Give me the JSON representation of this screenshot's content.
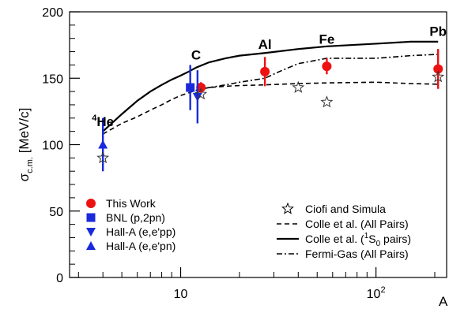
{
  "chart_data": {
    "type": "scatter",
    "title": "",
    "xlabel": "A",
    "ylabel_main": "σ",
    "ylabel_sub": "c.m.",
    "ylabel_unit": "[MeV/c]",
    "x_scale": "log",
    "xlim": [
      2.7,
      230
    ],
    "ylim": [
      0,
      200
    ],
    "y_ticks": [
      0,
      50,
      100,
      150,
      200
    ],
    "x_ticks": [
      {
        "value": 10,
        "base": "10",
        "exp": ""
      },
      {
        "value": 100,
        "base": "10",
        "exp": "2"
      }
    ],
    "grid": false,
    "legend_left": {
      "position": "bottom-left",
      "entries": [
        {
          "label": "This Work",
          "marker": "circle",
          "color": "#ee1111"
        },
        {
          "label": "BNL (p,2pn)",
          "marker": "square",
          "color": "#1a2adb"
        },
        {
          "label": "Hall-A (e,e'pp)",
          "marker": "triangle-down",
          "color": "#1a2adb"
        },
        {
          "label": "Hall-A (e,e'pn)",
          "marker": "triangle-up",
          "color": "#1a2adb"
        }
      ]
    },
    "legend_right": {
      "position": "bottom-right",
      "entries": [
        {
          "label": "Ciofi and Simula",
          "style": "star"
        },
        {
          "label": "Colle et al. (All Pairs)",
          "style": "dashed"
        },
        {
          "label_pre": "Colle et al. (",
          "label_sup": "1",
          "label_mid": "S",
          "label_sub": "0",
          "label_post": " pairs)",
          "style": "solid"
        },
        {
          "label": "Fermi-Gas (All Pairs)",
          "style": "dashdot"
        }
      ]
    },
    "nucleus_labels": [
      {
        "sup": "4",
        "text": "He",
        "x": 4,
        "y": 114
      },
      {
        "sup": "",
        "text": "C",
        "x": 12,
        "y": 164
      },
      {
        "sup": "",
        "text": "Al",
        "x": 27,
        "y": 172
      },
      {
        "sup": "",
        "text": "Fe",
        "x": 56,
        "y": 176
      },
      {
        "sup": "",
        "text": "Pb",
        "x": 208,
        "y": 182
      }
    ],
    "series": [
      {
        "name": "This Work",
        "marker": "circle",
        "color": "#ee1111",
        "points": [
          {
            "x": 12.7,
            "y": 143,
            "err": 4
          },
          {
            "x": 27,
            "y": 155,
            "err": 11
          },
          {
            "x": 56,
            "y": 159,
            "err": 6
          },
          {
            "x": 208,
            "y": 157,
            "err": 15
          }
        ]
      },
      {
        "name": "BNL (p,2pn)",
        "marker": "square",
        "color": "#1a2adb",
        "points": [
          {
            "x": 11.2,
            "y": 143,
            "err": 17
          }
        ]
      },
      {
        "name": "Hall-A (e,e'pp)",
        "marker": "triangle-down",
        "color": "#1a2adb",
        "points": [
          {
            "x": 12.2,
            "y": 136,
            "err": 20
          }
        ]
      },
      {
        "name": "Hall-A (e,e'pn)",
        "marker": "triangle-up",
        "color": "#1a2adb",
        "points": [
          {
            "x": 4,
            "y": 100,
            "err": 20
          }
        ]
      },
      {
        "name": "Ciofi and Simula",
        "marker": "star",
        "color": "#333333",
        "points": [
          {
            "x": 4,
            "y": 90
          },
          {
            "x": 12.7,
            "y": 138
          },
          {
            "x": 40,
            "y": 143
          },
          {
            "x": 56,
            "y": 132
          },
          {
            "x": 208,
            "y": 151
          }
        ]
      }
    ],
    "curves": [
      {
        "name": "Colle et al. (1S0 pairs)",
        "style": "solid",
        "x": [
          4,
          5,
          6,
          7,
          8,
          9,
          10,
          11,
          12,
          14,
          17,
          20,
          27,
          40,
          56,
          100,
          150,
          208
        ],
        "y": [
          110,
          123,
          133,
          140,
          145,
          149,
          152,
          155,
          158,
          162,
          165,
          167,
          169,
          172,
          174,
          176,
          177.5,
          177.5
        ]
      },
      {
        "name": "Colle et al. (All Pairs)",
        "style": "dashed",
        "x": [
          4,
          5,
          6,
          7,
          8,
          9,
          10,
          11,
          12,
          14,
          17,
          20,
          27,
          40,
          56,
          100,
          150,
          208
        ],
        "y": [
          108,
          116,
          121,
          126,
          130,
          134,
          137,
          139,
          141,
          143,
          144,
          144.5,
          145,
          146,
          146.5,
          147,
          146,
          145.5
        ]
      },
      {
        "name": "Fermi-Gas (All Pairs)",
        "style": "dashdot",
        "x": [
          12,
          14,
          17,
          20,
          27,
          32,
          40,
          56,
          100,
          150,
          208
        ],
        "y": [
          141,
          143,
          145,
          147,
          150,
          155,
          161,
          165,
          165,
          167,
          168
        ]
      }
    ]
  }
}
